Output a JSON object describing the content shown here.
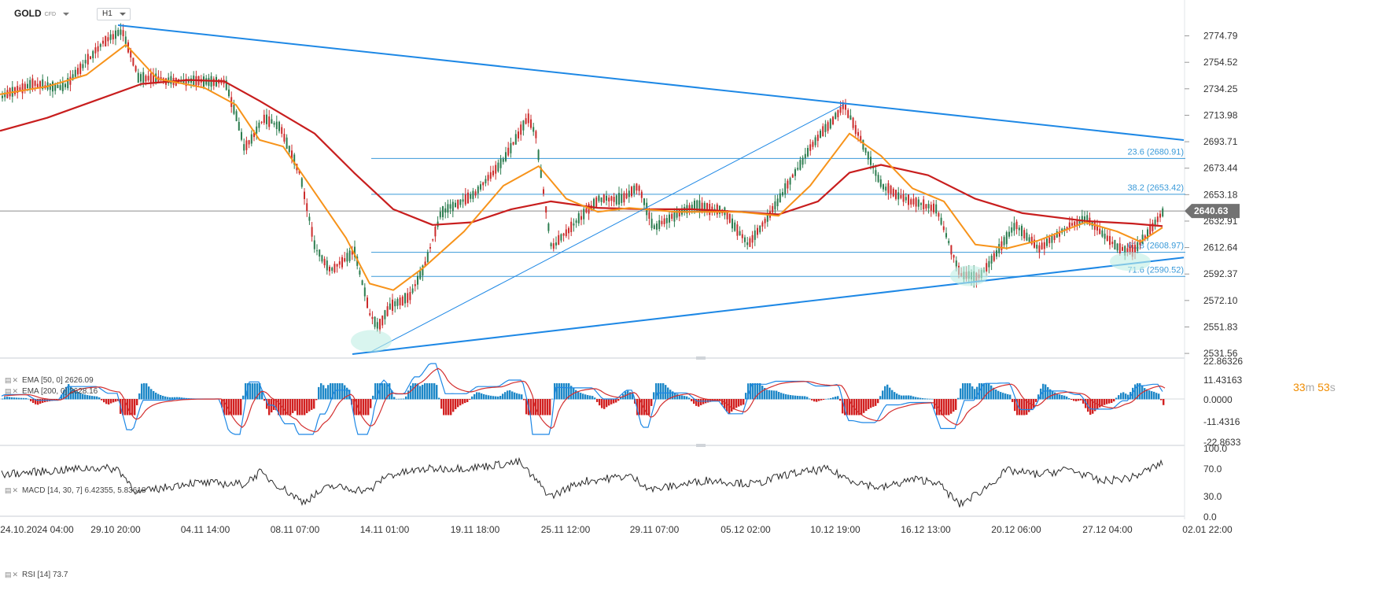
{
  "header": {
    "symbol": "GOLD",
    "instrument_type": "CFD",
    "timeframe": "H1"
  },
  "timer": {
    "minutes": "33",
    "minutes_unit": "m",
    "seconds": "53",
    "seconds_unit": "s"
  },
  "indicators": {
    "ema50": "EMA [50, 0] 2626.09",
    "ema200": "EMA [200, 0] 2628.16",
    "macd": "MACD [14, 30, 7] 6.42355, 5.83618",
    "rsi": "RSI [14] 73.7"
  },
  "colors": {
    "up_candle": "#2c7d4f",
    "down_candle": "#cc2b2b",
    "ema50": "#f7931a",
    "ema200": "#c81e1e",
    "trendline": "#1e88e5",
    "fib": "#3a9ad9",
    "macd_pos": "#1e88c8",
    "macd_neg": "#d22020"
  },
  "chart_data": [
    {
      "type": "candlestick",
      "series_label": "GOLD CFD H1",
      "y_ticks": [
        "2774.79",
        "2754.52",
        "2734.25",
        "2713.98",
        "2693.71",
        "2673.44",
        "2653.18",
        "2632.91",
        "2612.64",
        "2592.37",
        "2572.10",
        "2551.83",
        "2531.56"
      ],
      "ylim": [
        2528,
        2789
      ],
      "x_ticks": [
        "24.10.2024 04:00",
        "29.10 20:00",
        "04.11 14:00",
        "08.11 07:00",
        "14.11 01:00",
        "19.11 18:00",
        "25.11 12:00",
        "29.11 07:00",
        "05.12 02:00",
        "10.12 19:00",
        "16.12 13:00",
        "20.12 06:00",
        "27.12 04:00",
        "02.01 22:00"
      ],
      "current_price": "2640.63",
      "price_path": [
        [
          0,
          2728
        ],
        [
          40,
          2738
        ],
        [
          80,
          2735
        ],
        [
          130,
          2770
        ],
        [
          155,
          2778
        ],
        [
          170,
          2752
        ],
        [
          175,
          2743
        ],
        [
          220,
          2740
        ],
        [
          285,
          2740
        ],
        [
          300,
          2712
        ],
        [
          310,
          2688
        ],
        [
          335,
          2712
        ],
        [
          355,
          2705
        ],
        [
          380,
          2670
        ],
        [
          400,
          2612
        ],
        [
          420,
          2595
        ],
        [
          450,
          2610
        ],
        [
          470,
          2560
        ],
        [
          480,
          2552
        ],
        [
          495,
          2568
        ],
        [
          520,
          2575
        ],
        [
          540,
          2600
        ],
        [
          560,
          2640
        ],
        [
          600,
          2652
        ],
        [
          640,
          2680
        ],
        [
          670,
          2712
        ],
        [
          680,
          2700
        ],
        [
          700,
          2612
        ],
        [
          720,
          2625
        ],
        [
          760,
          2650
        ],
        [
          790,
          2650
        ],
        [
          810,
          2660
        ],
        [
          830,
          2628
        ],
        [
          880,
          2645
        ],
        [
          920,
          2640
        ],
        [
          950,
          2615
        ],
        [
          980,
          2640
        ],
        [
          1000,
          2660
        ],
        [
          1030,
          2690
        ],
        [
          1060,
          2712
        ],
        [
          1072,
          2722
        ],
        [
          1090,
          2700
        ],
        [
          1120,
          2660
        ],
        [
          1150,
          2650
        ],
        [
          1190,
          2642
        ],
        [
          1220,
          2592
        ],
        [
          1245,
          2590
        ],
        [
          1270,
          2612
        ],
        [
          1290,
          2630
        ],
        [
          1320,
          2612
        ],
        [
          1360,
          2630
        ],
        [
          1380,
          2635
        ],
        [
          1420,
          2612
        ],
        [
          1440,
          2610
        ],
        [
          1460,
          2625
        ],
        [
          1478,
          2640
        ]
      ],
      "ema50_path": [
        [
          0,
          2730
        ],
        [
          60,
          2736
        ],
        [
          110,
          2745
        ],
        [
          160,
          2768
        ],
        [
          200,
          2742
        ],
        [
          260,
          2735
        ],
        [
          300,
          2722
        ],
        [
          330,
          2695
        ],
        [
          360,
          2690
        ],
        [
          400,
          2655
        ],
        [
          440,
          2620
        ],
        [
          470,
          2585
        ],
        [
          500,
          2580
        ],
        [
          540,
          2598
        ],
        [
          590,
          2625
        ],
        [
          640,
          2660
        ],
        [
          685,
          2675
        ],
        [
          720,
          2650
        ],
        [
          760,
          2640
        ],
        [
          800,
          2643
        ],
        [
          860,
          2640
        ],
        [
          940,
          2640
        ],
        [
          990,
          2637
        ],
        [
          1030,
          2660
        ],
        [
          1080,
          2700
        ],
        [
          1120,
          2683
        ],
        [
          1160,
          2658
        ],
        [
          1200,
          2648
        ],
        [
          1240,
          2615
        ],
        [
          1280,
          2612
        ],
        [
          1320,
          2618
        ],
        [
          1380,
          2632
        ],
        [
          1420,
          2625
        ],
        [
          1450,
          2617
        ],
        [
          1478,
          2628
        ]
      ],
      "ema200_path": [
        [
          0,
          2702
        ],
        [
          60,
          2712
        ],
        [
          120,
          2725
        ],
        [
          180,
          2738
        ],
        [
          240,
          2741
        ],
        [
          285,
          2740
        ],
        [
          330,
          2725
        ],
        [
          400,
          2700
        ],
        [
          450,
          2670
        ],
        [
          500,
          2642
        ],
        [
          550,
          2630
        ],
        [
          600,
          2632
        ],
        [
          650,
          2642
        ],
        [
          700,
          2648
        ],
        [
          760,
          2643
        ],
        [
          820,
          2642
        ],
        [
          880,
          2642
        ],
        [
          940,
          2640
        ],
        [
          990,
          2638
        ],
        [
          1040,
          2648
        ],
        [
          1080,
          2670
        ],
        [
          1120,
          2676
        ],
        [
          1180,
          2668
        ],
        [
          1240,
          2650
        ],
        [
          1300,
          2639
        ],
        [
          1380,
          2633
        ],
        [
          1440,
          2631
        ],
        [
          1478,
          2629
        ]
      ],
      "trendlines": [
        [
          [
            150,
            2783
          ],
          [
            1505,
            2695
          ]
        ],
        [
          [
            448,
            2531
          ],
          [
            1505,
            2605
          ]
        ],
        [
          [
            472,
            2533
          ],
          [
            1072,
            2722
          ]
        ]
      ],
      "fib_levels": [
        {
          "label": "23.6 (2680.91)",
          "y": 2680.91
        },
        {
          "label": "38.2 (2653.42)",
          "y": 2653.42
        },
        {
          "label": "61.8 (2608.97)",
          "y": 2608.97
        },
        {
          "label": "71.6 (2590.52)",
          "y": 2590.52
        }
      ],
      "fib_x_range": [
        472,
        1507
      ]
    },
    {
      "type": "histogram",
      "series_label": "MACD",
      "y_ticks": [
        "22.86326",
        "11.43163",
        "0.0000",
        "-11.4316",
        "-22.8633"
      ],
      "ylim": [
        -22.8633,
        22.86326
      ]
    },
    {
      "type": "line",
      "series_label": "RSI",
      "y_ticks": [
        "100.0",
        "70.0",
        "30.0",
        "0.0"
      ],
      "ylim": [
        0,
        100
      ],
      "anchor_path": [
        [
          0,
          62
        ],
        [
          60,
          67
        ],
        [
          120,
          72
        ],
        [
          150,
          70
        ],
        [
          175,
          35
        ],
        [
          240,
          50
        ],
        [
          310,
          48
        ],
        [
          330,
          65
        ],
        [
          385,
          22
        ],
        [
          420,
          45
        ],
        [
          470,
          38
        ],
        [
          490,
          60
        ],
        [
          540,
          70
        ],
        [
          600,
          72
        ],
        [
          660,
          80
        ],
        [
          700,
          30
        ],
        [
          740,
          52
        ],
        [
          800,
          60
        ],
        [
          830,
          40
        ],
        [
          900,
          54
        ],
        [
          960,
          48
        ],
        [
          1000,
          62
        ],
        [
          1050,
          70
        ],
        [
          1080,
          55
        ],
        [
          1120,
          42
        ],
        [
          1160,
          55
        ],
        [
          1190,
          52
        ],
        [
          1220,
          18
        ],
        [
          1250,
          40
        ],
        [
          1280,
          68
        ],
        [
          1320,
          62
        ],
        [
          1360,
          70
        ],
        [
          1400,
          52
        ],
        [
          1440,
          58
        ],
        [
          1478,
          79
        ]
      ]
    }
  ]
}
